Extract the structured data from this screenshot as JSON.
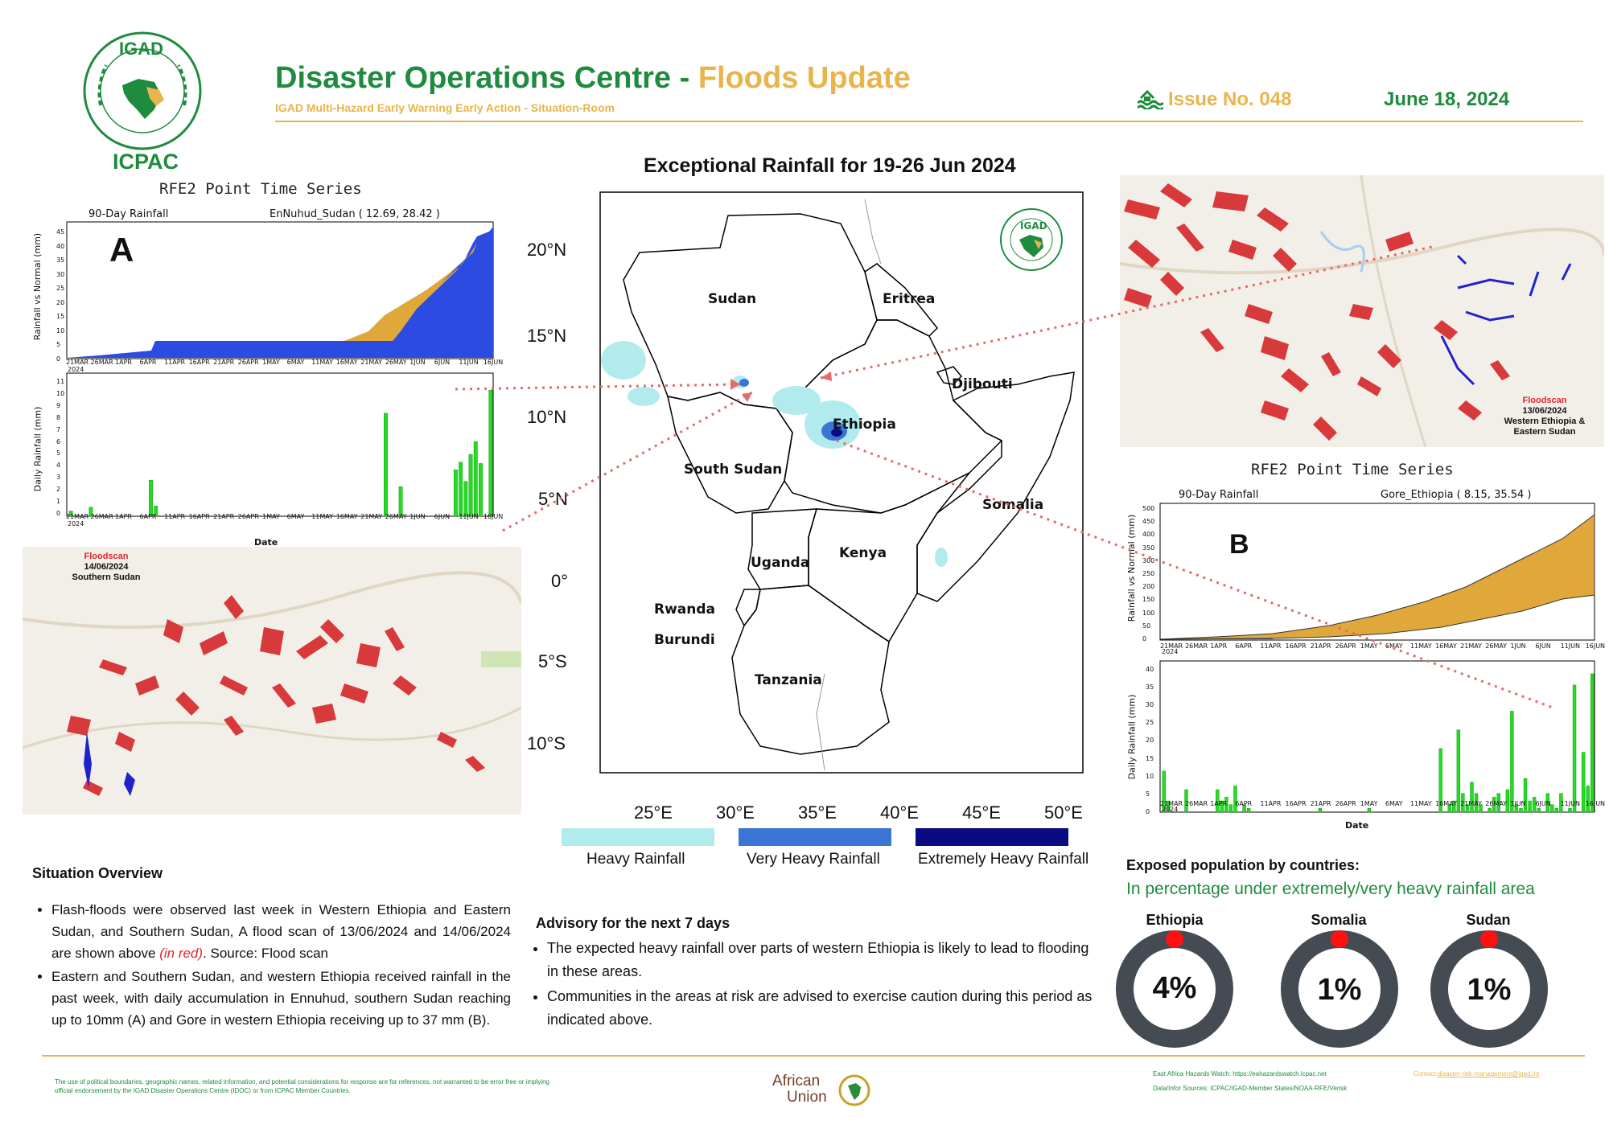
{
  "header": {
    "logo_top": "IGAD",
    "logo_ring": "INTERGOVERNMENTAL AUTHORITY ON DEVELOPMENT",
    "logo_bottom": "ICPAC",
    "title_part1": "Disaster Operations Centre - ",
    "title_part2": "Floods Update",
    "subtitle": "IGAD Multi-Hazard Early Warning Early Action - Situation-Room",
    "issue": "Issue No. 048",
    "date": "June 18, 2024"
  },
  "map": {
    "title": "Exceptional Rainfall for 19-26 Jun 2024",
    "lat_labels": [
      "20°N",
      "15°N",
      "10°N",
      "5°N",
      "0°",
      "5°S",
      "10°S"
    ],
    "lon_labels": [
      "25°E",
      "30°E",
      "35°E",
      "40°E",
      "45°E",
      "50°E"
    ],
    "countries": [
      "Sudan",
      "Eritrea",
      "Djibouti",
      "Ethiopia",
      "South Sudan",
      "Somalia",
      "Uganda",
      "Kenya",
      "Rwanda",
      "Burundi",
      "Tanzania"
    ],
    "logo_text": "IGAD",
    "legend": [
      {
        "label": "Heavy Rainfall",
        "color": "#b2ebee"
      },
      {
        "label": "Very Heavy Rainfall",
        "color": "#3a75d6"
      },
      {
        "label": "Extremely Heavy Rainfall",
        "color": "#0a0a82"
      }
    ]
  },
  "series_a": {
    "heading": "RFE2 Point Time Series",
    "marker": "A",
    "panel_left": "90-Day Rainfall",
    "panel_right": "EnNuhud_Sudan ( 12.69, 28.42 )",
    "ylabel_top": "Rainfall vs Normal (mm)",
    "ylabel_bottom": "Daily Rainfall (mm)",
    "xlabel": "Date",
    "date_ticks": [
      "21MAR",
      "26MAR",
      "1APR",
      "6APR",
      "11APR",
      "16APR",
      "21APR",
      "26APR",
      "1MAY",
      "6MAY",
      "11MAY",
      "16MAY",
      "21MAY",
      "26MAY",
      "1JUN",
      "6JUN",
      "11JUN",
      "16JUN"
    ],
    "year": "2024",
    "top_ticks": [
      "0",
      "5",
      "10",
      "15",
      "20",
      "25",
      "30",
      "35",
      "40",
      "45"
    ],
    "bottom_ticks": [
      "0",
      "1",
      "2",
      "3",
      "4",
      "5",
      "6",
      "7",
      "8",
      "9",
      "10",
      "11"
    ]
  },
  "series_b": {
    "heading": "RFE2 Point Time Series",
    "marker": "B",
    "panel_left": "90-Day Rainfall",
    "panel_right": "Gore_Ethiopia ( 8.15, 35.54 )",
    "ylabel_top": "Rainfall vs Normal (mm)",
    "ylabel_bottom": "Daily Rainfall (mm)",
    "xlabel": "Date",
    "date_ticks": [
      "21MAR",
      "26MAR",
      "1APR",
      "6APR",
      "11APR",
      "16APR",
      "21APR",
      "26APR",
      "1MAY",
      "6MAY",
      "11MAY",
      "16MAY",
      "21MAY",
      "26MAY",
      "1JUN",
      "6JUN",
      "11JUN",
      "16JUN"
    ],
    "year": "2024",
    "top_ticks": [
      "0",
      "50",
      "100",
      "150",
      "200",
      "250",
      "300",
      "350",
      "400",
      "450",
      "500"
    ],
    "bottom_ticks": [
      "0",
      "5",
      "10",
      "15",
      "20",
      "25",
      "30",
      "35",
      "40"
    ]
  },
  "chart_data": [
    {
      "type": "bar",
      "title": "",
      "xlabel": "Date",
      "ylabel": "Daily Rainfall (mm)",
      "ylim": [
        0,
        11
      ],
      "series": [
        {
          "values": [
            0.4,
            0,
            0,
            0,
            0.7,
            0,
            0,
            0,
            0,
            0,
            0,
            0,
            0,
            0,
            0,
            0,
            2.8,
            0.8,
            0,
            0,
            0,
            0,
            0,
            0,
            0,
            0,
            0,
            0,
            0,
            0,
            0,
            0,
            0,
            0,
            0,
            0,
            0,
            0,
            0,
            0,
            0,
            0,
            0,
            0,
            0,
            0,
            0,
            0,
            0,
            0,
            0,
            0,
            0,
            0,
            0,
            0,
            0,
            0,
            0,
            0,
            0,
            0,
            0,
            8,
            0,
            0,
            2.3,
            0,
            0,
            0,
            0,
            0,
            0,
            0,
            0,
            0,
            0,
            3.6,
            4.2,
            2.7,
            4.8,
            5.8,
            4.1,
            0,
            9.8
          ]
        }
      ]
    },
    {
      "type": "bar",
      "title": "",
      "xlabel": "Date",
      "ylabel": "Daily Rainfall (mm)",
      "ylim": [
        0,
        40
      ],
      "series": [
        {
          "values": [
            11,
            3,
            0,
            0,
            0,
            6,
            0,
            0,
            0,
            0,
            0,
            0,
            6,
            3,
            4,
            2,
            7,
            0,
            2,
            1,
            0,
            0,
            0,
            0,
            0,
            0,
            0,
            0,
            0,
            0,
            0,
            0,
            0,
            0,
            0,
            1,
            0,
            0,
            0,
            0,
            0,
            0,
            0,
            0,
            0,
            0,
            1,
            0,
            0,
            0,
            0,
            0,
            0,
            0,
            0,
            0,
            0,
            0,
            0,
            0,
            0,
            0,
            17,
            0,
            2,
            3,
            22,
            5,
            2,
            8,
            5,
            2,
            0,
            1,
            4,
            5,
            0,
            6,
            27,
            2,
            1,
            9,
            3,
            4,
            1,
            0,
            5,
            2,
            1,
            5,
            0,
            1,
            34,
            0,
            16,
            7,
            37
          ]
        }
      ]
    }
  ],
  "flood_top": {
    "title": "Floodscan",
    "date": "13/06/2024",
    "place": "Western Ethiopia & Eastern Sudan"
  },
  "flood_left": {
    "title": "Floodscan",
    "date": "14/06/2024",
    "place": "Southern Sudan"
  },
  "situation": {
    "title": "Situation Overview",
    "b1_pre": "Flash-floods were observed last week in Western Ethiopia and Eastern Sudan, and Southern Sudan, A flood scan of 13/06/2024 and 14/06/2024 are shown above ",
    "b1_red": "(in red)",
    "b1_post": ". Source: Flood scan",
    "b2": "Eastern and Southern Sudan, and western Ethiopia received rainfall in the past week, with daily accumulation in Ennuhud, southern Sudan reaching up to 10mm (A) and Gore in western Ethiopia receiving up to 37 mm (B)."
  },
  "advisory": {
    "title": "Advisory for the next 7 days",
    "b1": "The expected heavy rainfall over parts of western Ethiopia is likely to lead to flooding in these areas.",
    "b2": "Communities in the areas at risk are advised to exercise caution during this period as indicated above."
  },
  "exposed": {
    "title": "Exposed population by countries:",
    "subtitle": "In percentage under extremely/very heavy rainfall area",
    "items": [
      {
        "country": "Ethiopia",
        "value": "4%",
        "fraction": 0.04
      },
      {
        "country": "Somalia",
        "value": "1%",
        "fraction": 0.01
      },
      {
        "country": "Sudan",
        "value": "1%",
        "fraction": 0.01
      }
    ]
  },
  "footer": {
    "disclaimer": "The use of political boundaries, geographic names, related information, and potential considerations for response are for references, not warranted to be error free or implying official endorsement by the IGAD Disaster Operations Centre (IDOC) or from ICPAC Member Countries.",
    "au_line1": "African",
    "au_line2": "Union",
    "watch": "East Africa Hazards Watch: https://eahazardswatch.icpac.net",
    "sources": "Data/Infor Sources: ICPAC/IGAD-Member States/NOAA-RFE/Verisk",
    "contact_label": "Contact:",
    "contact_email": "disaster-risk-management@igad.int"
  }
}
